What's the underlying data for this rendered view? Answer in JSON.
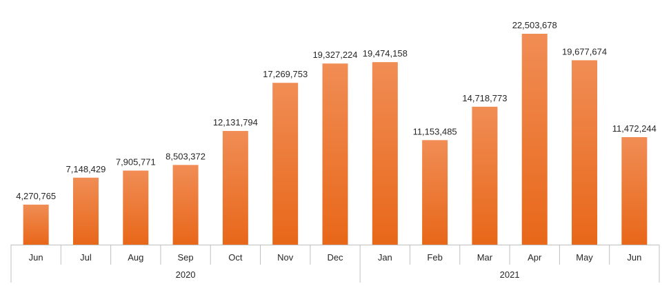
{
  "chart_data": {
    "type": "bar",
    "title": "",
    "xlabel": "",
    "ylabel": "",
    "ylim": [
      0,
      22503678
    ],
    "grid": false,
    "legend": "none",
    "categories": [
      "Jun",
      "Jul",
      "Aug",
      "Sep",
      "Oct",
      "Nov",
      "Dec",
      "Jan",
      "Feb",
      "Mar",
      "Apr",
      "May",
      "Jun"
    ],
    "groups": [
      {
        "label": "2020",
        "start": 0,
        "end": 6
      },
      {
        "label": "2021",
        "start": 7,
        "end": 12
      }
    ],
    "series": [
      {
        "values": [
          4270765,
          7148429,
          7905771,
          8503372,
          12131794,
          17269753,
          19327224,
          19474158,
          11153485,
          14718773,
          22503678,
          19677674,
          11472244
        ],
        "labels": [
          "4,270,765",
          "7,148,429",
          "7,905,771",
          "8,503,372",
          "12,131,794",
          "17,269,753",
          "19,327,224",
          "19,474,158",
          "11,153,485",
          "14,718,773",
          "22,503,678",
          "19,677,674",
          "11,472,244"
        ]
      }
    ],
    "colors": {
      "bar_top": "#F08D55",
      "bar_bottom": "#E86719",
      "axis": "#BFBFBF",
      "text": "#262626"
    }
  }
}
